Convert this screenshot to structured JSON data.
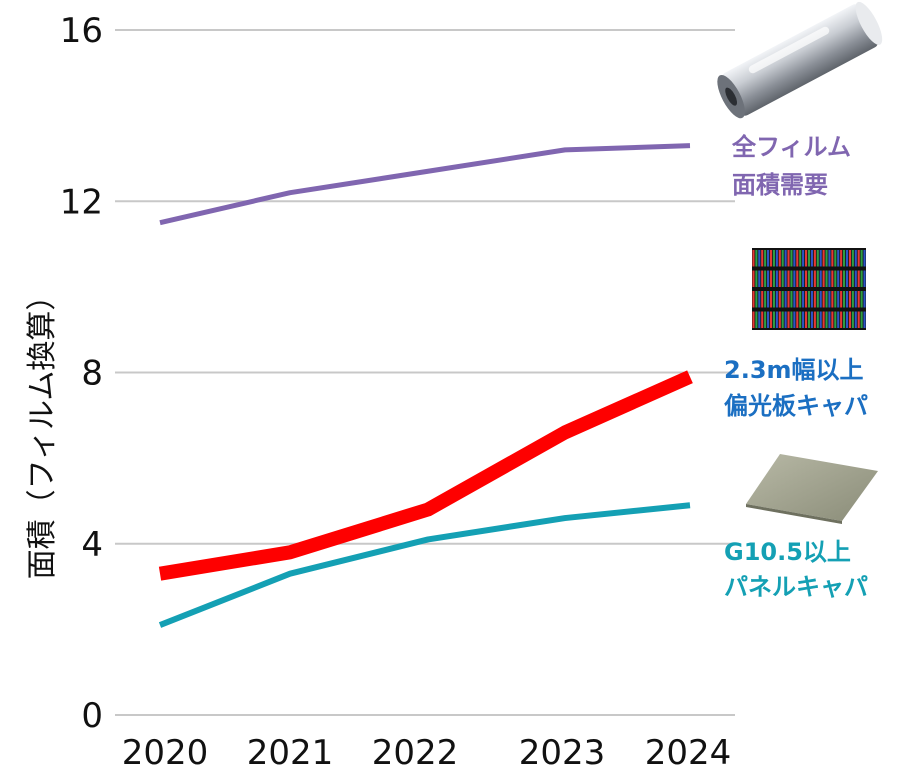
{
  "chart_data": {
    "type": "line",
    "categories": [
      "2020",
      "2021",
      "2022",
      "2023",
      "2024"
    ],
    "ylabel": "面積（フィルム換算）",
    "ylim": [
      0,
      16
    ],
    "yticks": [
      "0",
      "4",
      "8",
      "12",
      "16"
    ],
    "grid": true,
    "series": [
      {
        "name_lines": [
          "全フィルム",
          "面積需要"
        ],
        "color": "#8066b0",
        "values": [
          11.5,
          12.2,
          12.7,
          13.2,
          13.3
        ],
        "icon": "film-roll-icon"
      },
      {
        "name_lines": [
          "2.3m幅以上",
          "偏光板キャパ"
        ],
        "color": "#fe0000",
        "label_color": "#1b6fc2",
        "values": [
          3.3,
          3.8,
          4.8,
          6.6,
          7.9
        ],
        "icon": "pixel-grid-icon"
      },
      {
        "name_lines": [
          "G10.5以上",
          "パネルキャパ"
        ],
        "color": "#14a0b4",
        "values": [
          2.1,
          3.3,
          4.1,
          4.6,
          4.9
        ],
        "icon": "glass-panel-icon"
      }
    ]
  }
}
